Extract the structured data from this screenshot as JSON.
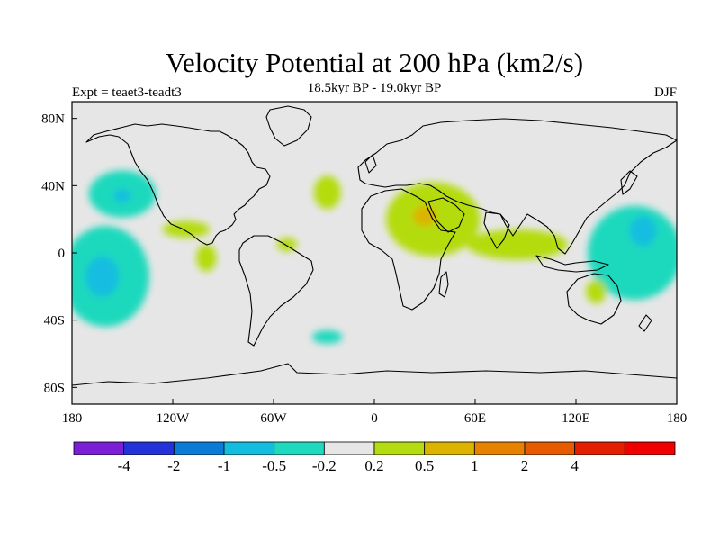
{
  "chart_data": {
    "type": "map",
    "title": "Velocity Potential at 200 hPa (km2/s)",
    "subtitle": "18.5kyr BP - 19.0kyr BP",
    "left_label": "Expt = teaet3-teadt3",
    "right_label": "DJF",
    "lon_range": [
      -180,
      180
    ],
    "lat_range": [
      -90,
      90
    ],
    "lat_ticks": [
      {
        "value": 80,
        "label": "80N"
      },
      {
        "value": 40,
        "label": "40N"
      },
      {
        "value": 0,
        "label": "0"
      },
      {
        "value": -40,
        "label": "40S"
      },
      {
        "value": -80,
        "label": "80S"
      }
    ],
    "lon_ticks": [
      {
        "value": -180,
        "label": "180"
      },
      {
        "value": -120,
        "label": "120W"
      },
      {
        "value": -60,
        "label": "60W"
      },
      {
        "value": 0,
        "label": "0"
      },
      {
        "value": 60,
        "label": "60E"
      },
      {
        "value": 120,
        "label": "120E"
      },
      {
        "value": 180,
        "label": "180"
      }
    ],
    "colorbar": {
      "colors": [
        "#7a1fd6",
        "#2433d9",
        "#0b7bd8",
        "#13bde0",
        "#1ed9bd",
        "#e6e6e6",
        "#b4dc10",
        "#dcb400",
        "#e68200",
        "#e65a00",
        "#e61e00",
        "#f00000"
      ],
      "labels": [
        "-4",
        "-2",
        "-1",
        "-0.5",
        "-0.2",
        "0.2",
        "0.5",
        "1",
        "2",
        "4"
      ]
    },
    "regions": [
      {
        "level": "-0.5 to -0.2",
        "color": "#1ed9bd",
        "lon": -160,
        "lat": -14,
        "rlon": 26,
        "rlat": 30
      },
      {
        "level": "-0.5 to -0.2",
        "color": "#1ed9bd",
        "lon": -150,
        "lat": 35,
        "rlon": 20,
        "rlat": 14
      },
      {
        "level": "-0.5 to -0.2",
        "color": "#1ed9bd",
        "lon": 155,
        "lat": 0,
        "rlon": 28,
        "rlat": 28
      },
      {
        "level": "-0.5 to -0.2",
        "color": "#1ed9bd",
        "lon": -28,
        "lat": -50,
        "rlon": 9,
        "rlat": 4
      },
      {
        "level": "-1 to -0.5",
        "color": "#13bde0",
        "lon": -162,
        "lat": -14,
        "rlon": 10,
        "rlat": 12
      },
      {
        "level": "-1 to -0.5",
        "color": "#13bde0",
        "lon": -150,
        "lat": 34,
        "rlon": 5,
        "rlat": 4
      },
      {
        "level": "-1 to -0.5",
        "color": "#13bde0",
        "lon": 160,
        "lat": 13,
        "rlon": 8,
        "rlat": 9
      },
      {
        "level": "0.2 to 0.5",
        "color": "#b4dc10",
        "lon": 35,
        "lat": 20,
        "rlon": 28,
        "rlat": 22
      },
      {
        "level": "0.2 to 0.5",
        "color": "#b4dc10",
        "lon": 85,
        "lat": 5,
        "rlon": 30,
        "rlat": 9
      },
      {
        "level": "0.2 to 0.5",
        "color": "#b4dc10",
        "lon": -28,
        "lat": 36,
        "rlon": 8,
        "rlat": 10
      },
      {
        "level": "0.2 to 0.5",
        "color": "#b4dc10",
        "lon": -112,
        "lat": 14,
        "rlon": 14,
        "rlat": 5
      },
      {
        "level": "0.2 to 0.5",
        "color": "#b4dc10",
        "lon": -100,
        "lat": -3,
        "rlon": 6,
        "rlat": 8
      },
      {
        "level": "0.2 to 0.5",
        "color": "#b4dc10",
        "lon": -52,
        "lat": 5,
        "rlon": 6,
        "rlat": 4
      },
      {
        "level": "0.2 to 0.5",
        "color": "#b4dc10",
        "lon": 132,
        "lat": -23,
        "rlon": 6,
        "rlat": 7
      },
      {
        "level": "0.5 to 1",
        "color": "#dcb400",
        "lon": 30,
        "lat": 22,
        "rlon": 7,
        "rlat": 6
      }
    ]
  }
}
